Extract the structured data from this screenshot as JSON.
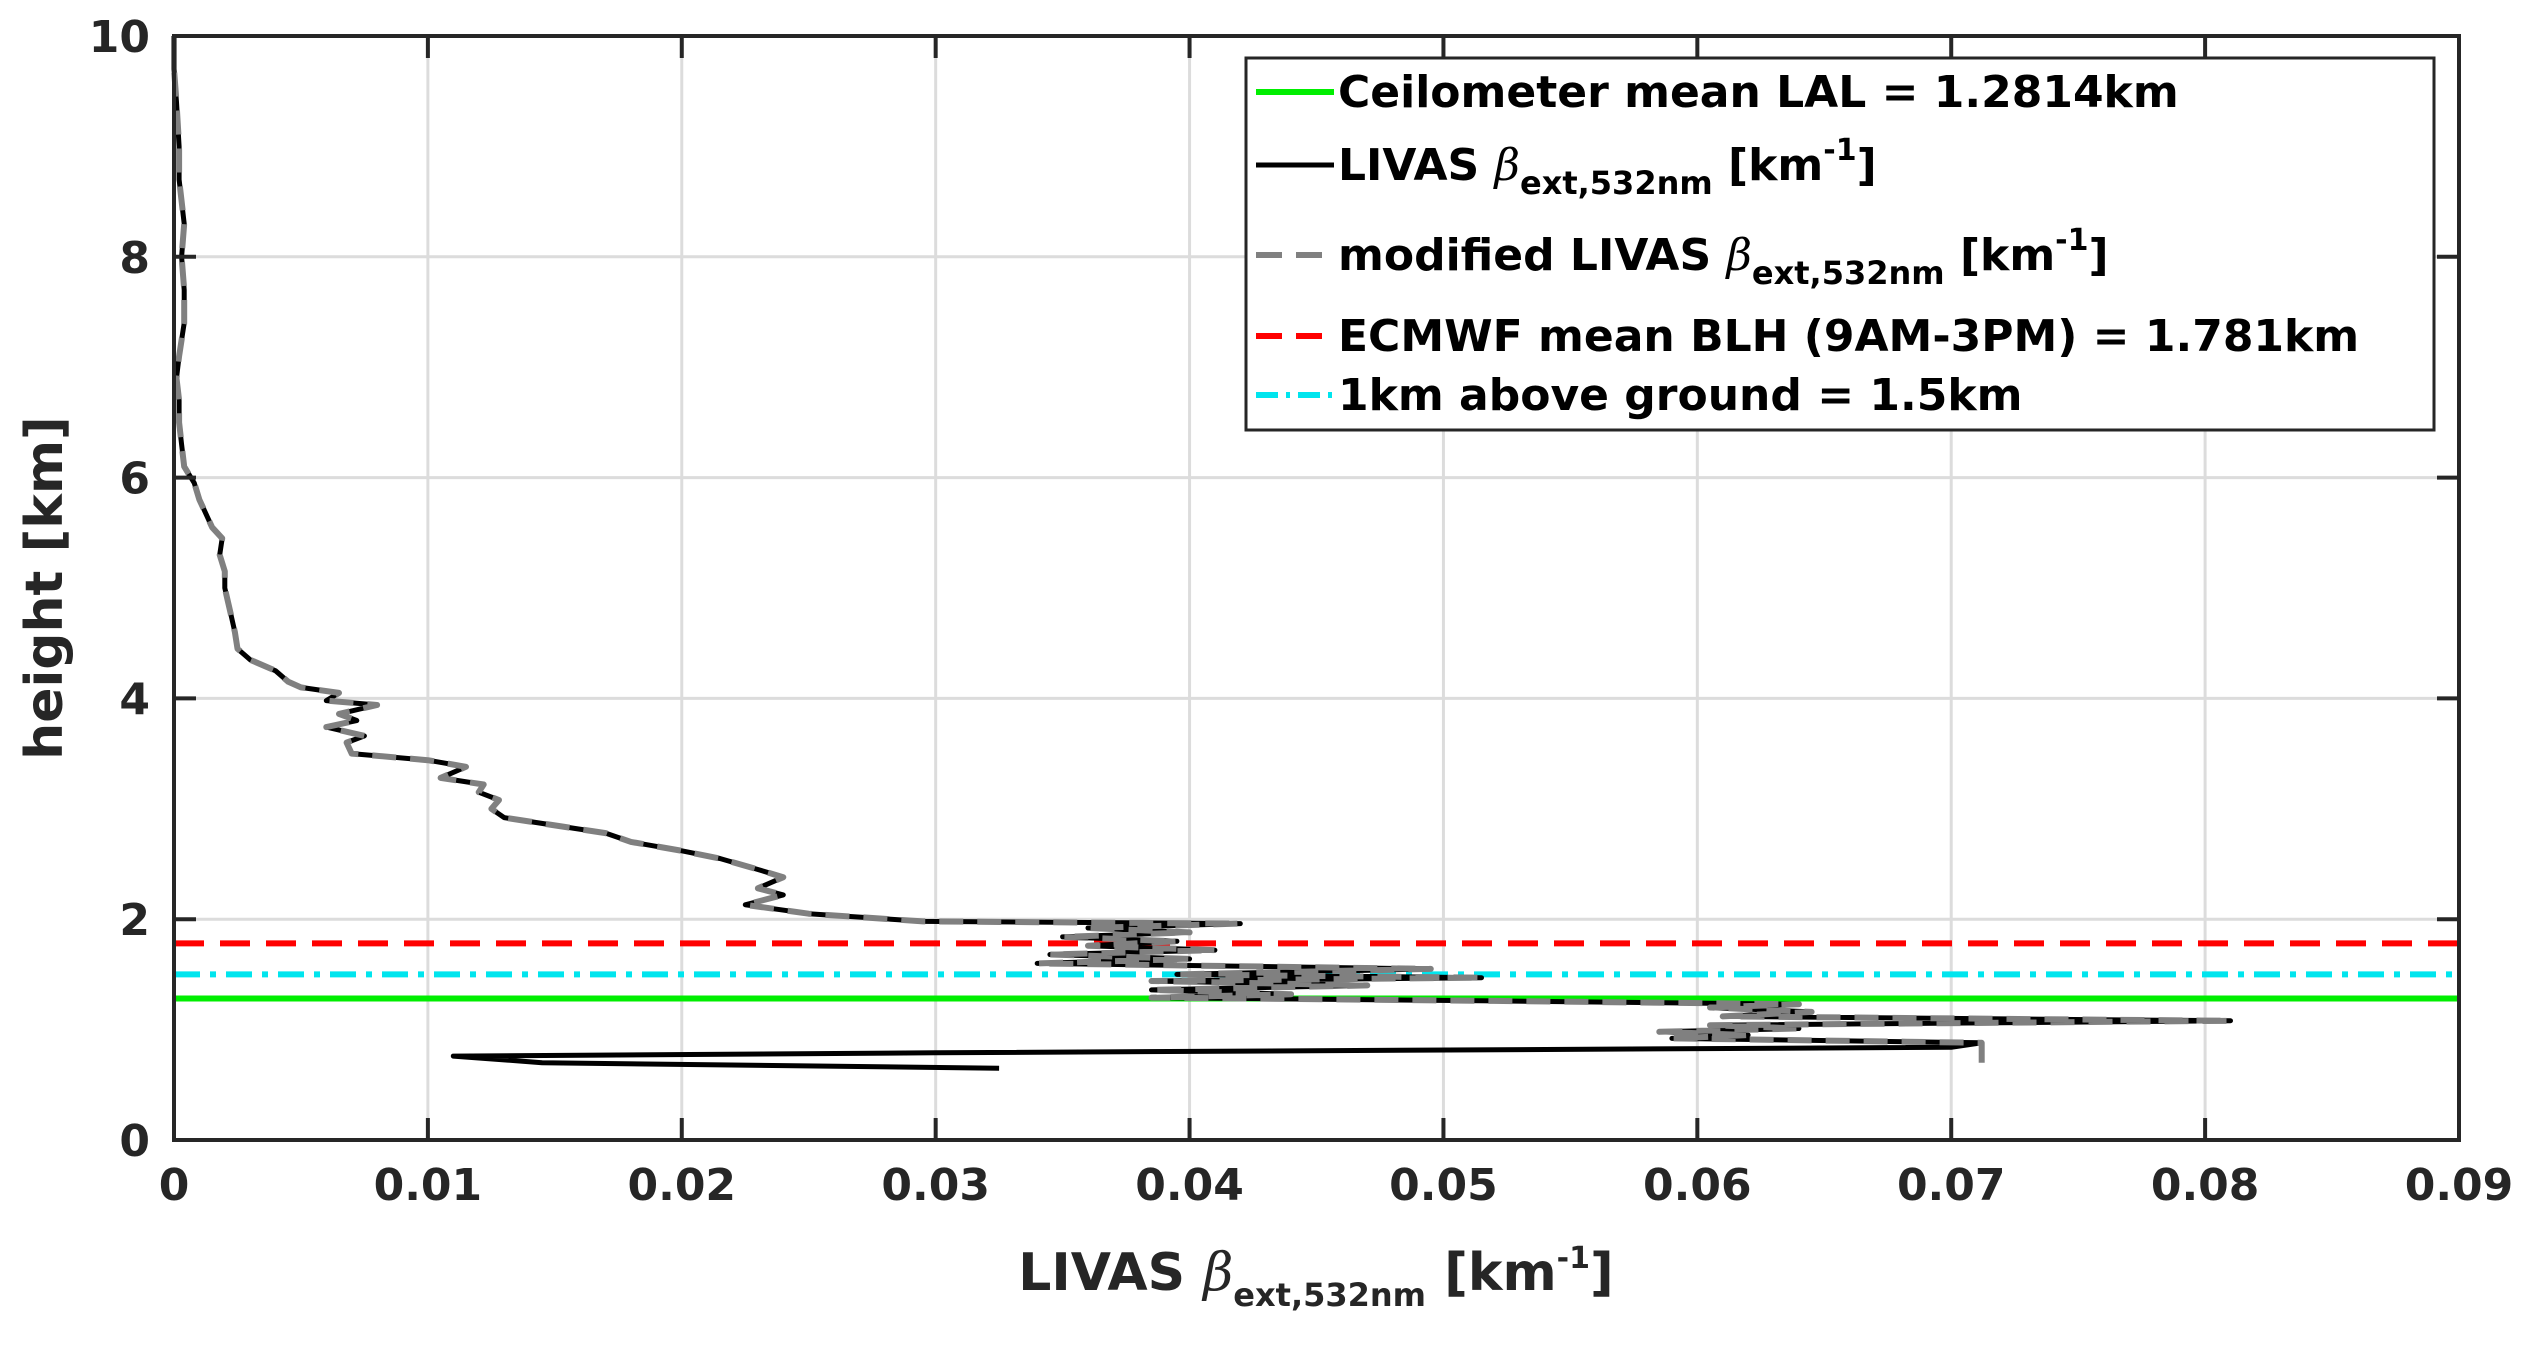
{
  "chart_data": {
    "type": "line",
    "xlabel": {
      "main": "LIVAS ",
      "greek": "β",
      "sub": "ext,532nm",
      "unit_pre": " [km",
      "unit_sup": "-1",
      "unit_post": "]"
    },
    "ylabel": "height [km]",
    "xlim": [
      0,
      0.09
    ],
    "ylim": [
      0,
      10
    ],
    "xticks": [
      0,
      0.01,
      0.02,
      0.03,
      0.04,
      0.05,
      0.06,
      0.07,
      0.08,
      0.09
    ],
    "xtick_labels": [
      "0",
      "0.01",
      "0.02",
      "0.03",
      "0.04",
      "0.05",
      "0.06",
      "0.07",
      "0.08",
      "0.09"
    ],
    "yticks": [
      0,
      2,
      4,
      6,
      8,
      10
    ],
    "ytick_labels": [
      "0",
      "2",
      "4",
      "6",
      "8",
      "10"
    ],
    "grid": true,
    "legend_position": "top-right",
    "series": [
      {
        "name": "LIVAS βext,532nm [km-1]",
        "color": "#000000",
        "style": "solid",
        "points": [
          [
            0.0325,
            0.65
          ],
          [
            0.0145,
            0.7
          ],
          [
            0.011,
            0.76
          ],
          [
            0.03,
            0.79
          ],
          [
            0.07,
            0.84
          ],
          [
            0.0712,
            0.88
          ],
          [
            0.059,
            0.92
          ],
          [
            0.062,
            0.95
          ],
          [
            0.0585,
            0.98
          ],
          [
            0.064,
            1.01
          ],
          [
            0.0605,
            1.04
          ],
          [
            0.081,
            1.08
          ],
          [
            0.061,
            1.12
          ],
          [
            0.0645,
            1.16
          ],
          [
            0.0605,
            1.2
          ],
          [
            0.064,
            1.23
          ],
          [
            0.052,
            1.26
          ],
          [
            0.0385,
            1.29
          ],
          [
            0.044,
            1.32
          ],
          [
            0.0385,
            1.36
          ],
          [
            0.047,
            1.4
          ],
          [
            0.0385,
            1.44
          ],
          [
            0.0515,
            1.47
          ],
          [
            0.0395,
            1.5
          ],
          [
            0.0495,
            1.55
          ],
          [
            0.034,
            1.6
          ],
          [
            0.04,
            1.64
          ],
          [
            0.0345,
            1.68
          ],
          [
            0.041,
            1.72
          ],
          [
            0.036,
            1.76
          ],
          [
            0.0395,
            1.8
          ],
          [
            0.035,
            1.84
          ],
          [
            0.04,
            1.88
          ],
          [
            0.036,
            1.92
          ],
          [
            0.042,
            1.96
          ],
          [
            0.0295,
            1.98
          ],
          [
            0.025,
            2.05
          ],
          [
            0.0225,
            2.13
          ],
          [
            0.024,
            2.22
          ],
          [
            0.023,
            2.28
          ],
          [
            0.024,
            2.38
          ],
          [
            0.023,
            2.45
          ],
          [
            0.0215,
            2.55
          ],
          [
            0.02,
            2.62
          ],
          [
            0.018,
            2.7
          ],
          [
            0.017,
            2.78
          ],
          [
            0.015,
            2.85
          ],
          [
            0.013,
            2.92
          ],
          [
            0.0125,
            3.0
          ],
          [
            0.0128,
            3.08
          ],
          [
            0.012,
            3.15
          ],
          [
            0.0122,
            3.22
          ],
          [
            0.0105,
            3.28
          ],
          [
            0.0115,
            3.38
          ],
          [
            0.01,
            3.44
          ],
          [
            0.007,
            3.5
          ],
          [
            0.0068,
            3.6
          ],
          [
            0.0075,
            3.66
          ],
          [
            0.006,
            3.74
          ],
          [
            0.0072,
            3.8
          ],
          [
            0.0065,
            3.86
          ],
          [
            0.008,
            3.94
          ],
          [
            0.006,
            3.98
          ],
          [
            0.0065,
            4.05
          ],
          [
            0.005,
            4.1
          ],
          [
            0.0045,
            4.15
          ],
          [
            0.004,
            4.25
          ],
          [
            0.003,
            4.35
          ],
          [
            0.0025,
            4.45
          ],
          [
            0.0024,
            4.6
          ],
          [
            0.0022,
            4.8
          ],
          [
            0.002,
            5.0
          ],
          [
            0.002,
            5.15
          ],
          [
            0.0018,
            5.3
          ],
          [
            0.0019,
            5.45
          ],
          [
            0.0015,
            5.55
          ],
          [
            0.0012,
            5.7
          ],
          [
            0.001,
            5.8
          ],
          [
            0.0008,
            5.95
          ],
          [
            0.0004,
            6.1
          ],
          [
            0.0003,
            6.3
          ],
          [
            0.0002,
            6.5
          ],
          [
            0.0002,
            6.7
          ],
          [
            0.0001,
            6.9
          ],
          [
            0.0002,
            7.1
          ],
          [
            0.0004,
            7.4
          ],
          [
            0.0004,
            7.7
          ],
          [
            0.0003,
            8.0
          ],
          [
            0.0004,
            8.3
          ],
          [
            0.0002,
            8.7
          ],
          [
            0.0002,
            9.0
          ],
          [
            0.0001,
            9.4
          ],
          [
            0.0,
            9.7
          ],
          [
            0.0,
            10.0
          ]
        ]
      },
      {
        "name": "modified LIVAS βext,532nm [km-1]",
        "color": "#808080",
        "style": "dashed",
        "points": [
          [
            0.0712,
            0.7
          ],
          [
            0.0712,
            0.88
          ],
          [
            0.059,
            0.92
          ],
          [
            0.062,
            0.95
          ],
          [
            0.0585,
            0.98
          ],
          [
            0.064,
            1.01
          ],
          [
            0.0605,
            1.04
          ],
          [
            0.081,
            1.08
          ],
          [
            0.061,
            1.12
          ],
          [
            0.0645,
            1.16
          ],
          [
            0.0605,
            1.2
          ],
          [
            0.064,
            1.23
          ],
          [
            0.052,
            1.26
          ],
          [
            0.0385,
            1.29
          ],
          [
            0.044,
            1.32
          ],
          [
            0.0385,
            1.36
          ],
          [
            0.047,
            1.4
          ],
          [
            0.0385,
            1.44
          ],
          [
            0.0515,
            1.47
          ],
          [
            0.0395,
            1.5
          ],
          [
            0.0495,
            1.55
          ],
          [
            0.034,
            1.6
          ],
          [
            0.04,
            1.64
          ],
          [
            0.0345,
            1.68
          ],
          [
            0.041,
            1.72
          ],
          [
            0.036,
            1.76
          ],
          [
            0.0395,
            1.8
          ],
          [
            0.035,
            1.84
          ],
          [
            0.04,
            1.88
          ],
          [
            0.036,
            1.92
          ],
          [
            0.042,
            1.96
          ],
          [
            0.0295,
            1.98
          ],
          [
            0.025,
            2.05
          ],
          [
            0.0225,
            2.13
          ],
          [
            0.024,
            2.22
          ],
          [
            0.023,
            2.28
          ],
          [
            0.024,
            2.38
          ],
          [
            0.023,
            2.45
          ],
          [
            0.0215,
            2.55
          ],
          [
            0.02,
            2.62
          ],
          [
            0.018,
            2.7
          ],
          [
            0.017,
            2.78
          ],
          [
            0.015,
            2.85
          ],
          [
            0.013,
            2.92
          ],
          [
            0.0125,
            3.0
          ],
          [
            0.0128,
            3.08
          ],
          [
            0.012,
            3.15
          ],
          [
            0.0122,
            3.22
          ],
          [
            0.0105,
            3.28
          ],
          [
            0.0115,
            3.38
          ],
          [
            0.01,
            3.44
          ],
          [
            0.007,
            3.5
          ],
          [
            0.0068,
            3.6
          ],
          [
            0.0075,
            3.66
          ],
          [
            0.006,
            3.74
          ],
          [
            0.0072,
            3.8
          ],
          [
            0.0065,
            3.86
          ],
          [
            0.008,
            3.94
          ],
          [
            0.006,
            3.98
          ],
          [
            0.0065,
            4.05
          ],
          [
            0.005,
            4.1
          ],
          [
            0.0045,
            4.15
          ],
          [
            0.004,
            4.25
          ],
          [
            0.003,
            4.35
          ],
          [
            0.0025,
            4.45
          ],
          [
            0.0024,
            4.6
          ],
          [
            0.0022,
            4.8
          ],
          [
            0.002,
            5.0
          ],
          [
            0.002,
            5.15
          ],
          [
            0.0018,
            5.3
          ],
          [
            0.0019,
            5.45
          ],
          [
            0.0015,
            5.55
          ],
          [
            0.0012,
            5.7
          ],
          [
            0.001,
            5.8
          ],
          [
            0.0008,
            5.95
          ],
          [
            0.0004,
            6.1
          ],
          [
            0.0003,
            6.3
          ],
          [
            0.0002,
            6.5
          ],
          [
            0.0002,
            6.7
          ],
          [
            0.0001,
            6.9
          ],
          [
            0.0002,
            7.1
          ],
          [
            0.0004,
            7.4
          ],
          [
            0.0004,
            7.7
          ],
          [
            0.0003,
            8.0
          ],
          [
            0.0004,
            8.3
          ],
          [
            0.0002,
            8.7
          ],
          [
            0.0002,
            9.0
          ],
          [
            0.0001,
            9.4
          ],
          [
            0.0,
            9.7
          ],
          [
            0.0,
            10.0
          ]
        ]
      }
    ],
    "hlines": [
      {
        "name": "Ceilometer mean LAL = 1.2814km",
        "y": 1.2814,
        "color": "#00ee00",
        "style": "solid"
      },
      {
        "name": "ECMWF mean BLH (9AM-3PM) = 1.781km",
        "y": 1.781,
        "color": "#ff0000",
        "style": "dashed"
      },
      {
        "name": "1km above ground = 1.5km",
        "y": 1.5,
        "color": "#00e5ee",
        "style": "dashdot"
      }
    ]
  },
  "legend": {
    "entries": [
      {
        "key": "lal",
        "text": "Ceilometer mean LAL = 1.2814km",
        "color": "#00ee00",
        "style": "solid"
      },
      {
        "key": "livas",
        "pre": "LIVAS ",
        "greek": "β",
        "sub": "ext,532nm",
        "unit_pre": " [km",
        "unit_sup": "-1",
        "unit_post": "]",
        "color": "#000000",
        "style": "solid"
      },
      {
        "key": "mod",
        "pre": "modified LIVAS ",
        "greek": "β",
        "sub": "ext,532nm",
        "unit_pre": " [km",
        "unit_sup": "-1",
        "unit_post": "]",
        "color": "#808080",
        "style": "dashed"
      },
      {
        "key": "blh",
        "text": "ECMWF mean BLH (9AM-3PM) = 1.781km",
        "color": "#ff0000",
        "style": "dashed"
      },
      {
        "key": "1km",
        "text": "1km above ground = 1.5km",
        "color": "#00e5ee",
        "style": "dashdot"
      }
    ]
  }
}
